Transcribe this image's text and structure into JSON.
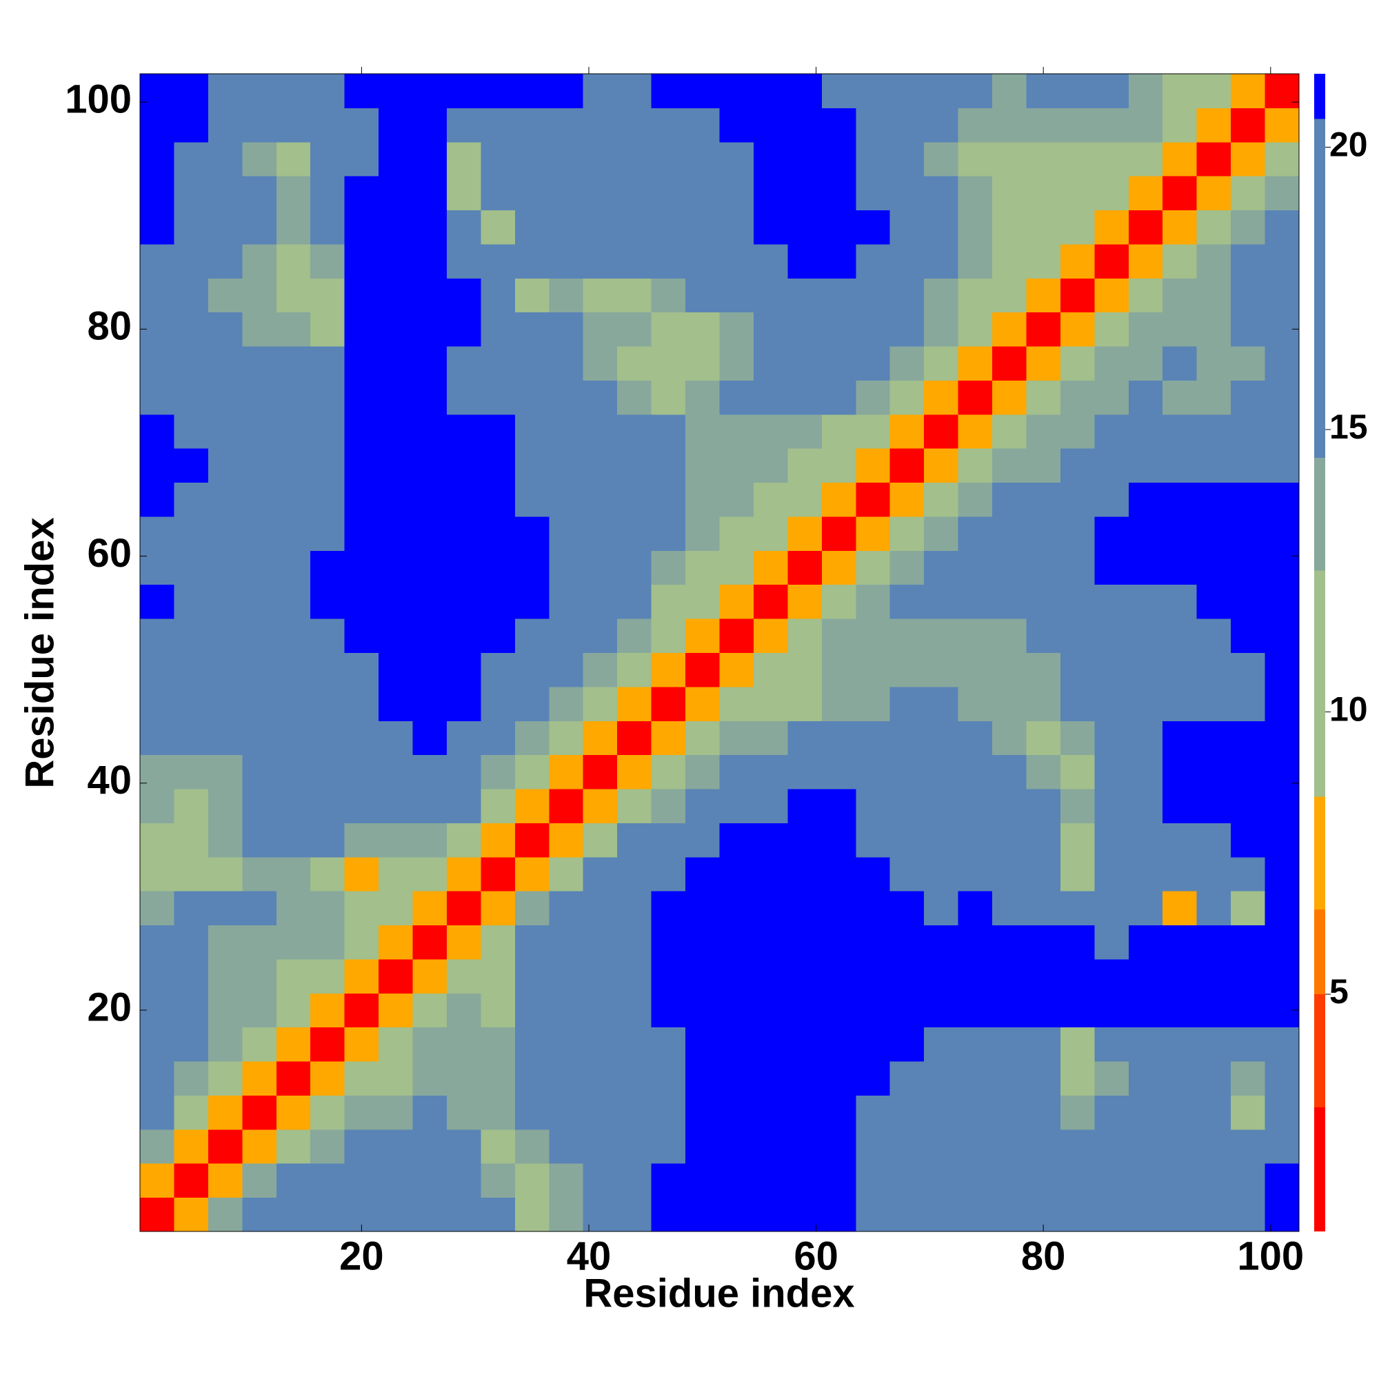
{
  "chart_data": {
    "type": "heatmap",
    "x_label": "Residue index",
    "y_label": "Residue index",
    "xlim": [
      0.5,
      102.5
    ],
    "ylim": [
      0.5,
      102.5
    ],
    "xticks": [
      20,
      40,
      60,
      80,
      100
    ],
    "yticks": [
      20,
      40,
      60,
      80,
      100
    ],
    "cell_size": 3,
    "x": [
      2,
      5,
      8,
      11,
      14,
      17,
      20,
      23,
      26,
      29,
      32,
      35,
      38,
      41,
      44,
      47,
      50,
      53,
      56,
      59,
      62,
      65,
      68,
      71,
      74,
      77,
      80,
      83,
      86,
      89,
      92,
      95,
      98,
      101
    ],
    "y": [
      2,
      5,
      8,
      11,
      14,
      17,
      20,
      23,
      26,
      29,
      32,
      35,
      38,
      41,
      44,
      47,
      50,
      53,
      56,
      59,
      62,
      65,
      68,
      71,
      74,
      77,
      80,
      83,
      86,
      89,
      92,
      95,
      98,
      101
    ],
    "z": [
      [
        2,
        7,
        13,
        15,
        16,
        17,
        17,
        17,
        16,
        17,
        15,
        10,
        14,
        16,
        18,
        21,
        21,
        21,
        21,
        21,
        21,
        19,
        19,
        18,
        19,
        19,
        18,
        19,
        19,
        18,
        18,
        19,
        19,
        21
      ],
      [
        7,
        2,
        7,
        13,
        15,
        16,
        16,
        17,
        17,
        16,
        13,
        10,
        13,
        16,
        18,
        21,
        21,
        21,
        21,
        21,
        21,
        19,
        19,
        18,
        18,
        18,
        18,
        18,
        18,
        18,
        17,
        18,
        19,
        21
      ],
      [
        13,
        7,
        2,
        7,
        12,
        14,
        15,
        15,
        16,
        15,
        10,
        14,
        15,
        17,
        17,
        19,
        21,
        21,
        21,
        21,
        21,
        19,
        18,
        18,
        17,
        17,
        16,
        17,
        17,
        17,
        16,
        16,
        17,
        19
      ],
      [
        15,
        12,
        7,
        2,
        7,
        12,
        14,
        14,
        15,
        14,
        14,
        15,
        16,
        17,
        18,
        19,
        21,
        21,
        21,
        21,
        21,
        19,
        18,
        17,
        17,
        16,
        15,
        14,
        15,
        16,
        15,
        15,
        12,
        18
      ],
      [
        16,
        14,
        11,
        7,
        2,
        7,
        11,
        12,
        14,
        14,
        14,
        15,
        16,
        17,
        18,
        19,
        21,
        21,
        21,
        21,
        21,
        21,
        19,
        18,
        17,
        16,
        15,
        11,
        14,
        16,
        16,
        15,
        14,
        18
      ],
      [
        17,
        15,
        13,
        11,
        7,
        2,
        7,
        10,
        13,
        14,
        13,
        15,
        16,
        17,
        18,
        19,
        21,
        21,
        21,
        21,
        21,
        21,
        21,
        19,
        18,
        17,
        16,
        10,
        15,
        17,
        17,
        17,
        18,
        19
      ],
      [
        17,
        15,
        14,
        13,
        10,
        7,
        2,
        7,
        11,
        13,
        10,
        15,
        16,
        17,
        18,
        21,
        21,
        21,
        21,
        21,
        21,
        21,
        21,
        21,
        21,
        21,
        21,
        21,
        21,
        21,
        21,
        21,
        21,
        21
      ],
      [
        16,
        15,
        14,
        14,
        12,
        10,
        7,
        2,
        7,
        11,
        9,
        16,
        17,
        18,
        19,
        21,
        21,
        21,
        21,
        21,
        21,
        21,
        21,
        21,
        21,
        21,
        21,
        21,
        21,
        21,
        21,
        21,
        21,
        21
      ],
      [
        16,
        15,
        14,
        14,
        13,
        13,
        11,
        7,
        2,
        7,
        12,
        16,
        17,
        18,
        19,
        21,
        21,
        21,
        21,
        21,
        21,
        21,
        21,
        21,
        21,
        21,
        21,
        21,
        19,
        21,
        21,
        21,
        21,
        21
      ],
      [
        14,
        15,
        15,
        15,
        14,
        13,
        12,
        10,
        7,
        2,
        7,
        13,
        16,
        17,
        19,
        21,
        21,
        21,
        21,
        21,
        21,
        21,
        21,
        19,
        21,
        19,
        18,
        19,
        19,
        18,
        8,
        17,
        10,
        21
      ],
      [
        12,
        10,
        12,
        14,
        13,
        12,
        8,
        9,
        11,
        7,
        2,
        7,
        12,
        15,
        17,
        19,
        21,
        21,
        21,
        21,
        21,
        21,
        19,
        18,
        19,
        18,
        17,
        10,
        17,
        18,
        18,
        19,
        19,
        21
      ],
      [
        10,
        9,
        13,
        15,
        15,
        15,
        14,
        14,
        14,
        12,
        7,
        2,
        7,
        12,
        15,
        17,
        19,
        21,
        21,
        21,
        21,
        19,
        18,
        17,
        18,
        17,
        16,
        12,
        17,
        18,
        18,
        19,
        21,
        21
      ],
      [
        13,
        12,
        14,
        15,
        16,
        16,
        17,
        17,
        17,
        15,
        12,
        7,
        2,
        7,
        12,
        14,
        16,
        18,
        19,
        21,
        21,
        19,
        18,
        17,
        17,
        16,
        15,
        13,
        17,
        19,
        21,
        21,
        21,
        21
      ],
      [
        14,
        13,
        14,
        15,
        16,
        17,
        17,
        18,
        18,
        17,
        14,
        11,
        7,
        2,
        7,
        12,
        14,
        16,
        17,
        18,
        19,
        17,
        17,
        16,
        16,
        15,
        14,
        9,
        16,
        18,
        21,
        21,
        21,
        21
      ],
      [
        16,
        15,
        16,
        16,
        17,
        17,
        18,
        19,
        21,
        18,
        17,
        14,
        11,
        7,
        2,
        7,
        11,
        13,
        14,
        15,
        16,
        16,
        16,
        15,
        15,
        14,
        10,
        14,
        17,
        19,
        21,
        21,
        21,
        21
      ],
      [
        17,
        17,
        17,
        17,
        18,
        18,
        19,
        21,
        21,
        21,
        18,
        16,
        14,
        11,
        7,
        2,
        7,
        10,
        10,
        12,
        13,
        14,
        15,
        15,
        14,
        14,
        13,
        15,
        17,
        18,
        19,
        19,
        19,
        21
      ],
      [
        18,
        17,
        17,
        18,
        18,
        18,
        19,
        21,
        21,
        21,
        19,
        17,
        16,
        14,
        11,
        7,
        2,
        7,
        9,
        11,
        13,
        14,
        14,
        14,
        14,
        13,
        14,
        15,
        17,
        18,
        18,
        19,
        19,
        21
      ],
      [
        19,
        18,
        18,
        18,
        18,
        19,
        21,
        21,
        21,
        21,
        21,
        19,
        17,
        16,
        13,
        10,
        7,
        2,
        7,
        11,
        13,
        14,
        14,
        13,
        13,
        14,
        15,
        16,
        17,
        18,
        18,
        19,
        21,
        21
      ],
      [
        21,
        19,
        19,
        19,
        19,
        21,
        21,
        21,
        21,
        21,
        21,
        21,
        19,
        17,
        15,
        12,
        9,
        7,
        2,
        7,
        11,
        13,
        15,
        16,
        16,
        16,
        17,
        17,
        18,
        19,
        19,
        21,
        21,
        21
      ],
      [
        19,
        18,
        18,
        19,
        19,
        21,
        21,
        21,
        21,
        21,
        21,
        21,
        19,
        17,
        15,
        13,
        11,
        10,
        7,
        2,
        7,
        11,
        14,
        15,
        16,
        16,
        17,
        18,
        21,
        21,
        21,
        21,
        21,
        21
      ],
      [
        19,
        18,
        18,
        17,
        18,
        19,
        21,
        21,
        21,
        21,
        21,
        21,
        19,
        17,
        16,
        15,
        13,
        12,
        10,
        7,
        2,
        7,
        10,
        13,
        15,
        16,
        17,
        18,
        21,
        21,
        21,
        21,
        21,
        21
      ],
      [
        21,
        19,
        18,
        17,
        17,
        19,
        21,
        21,
        21,
        21,
        21,
        19,
        18,
        17,
        16,
        15,
        14,
        13,
        12,
        9,
        7,
        2,
        7,
        11,
        14,
        15,
        16,
        17,
        19,
        21,
        21,
        21,
        21,
        21
      ],
      [
        21,
        21,
        19,
        18,
        17,
        18,
        21,
        21,
        21,
        21,
        21,
        19,
        17,
        16,
        16,
        15,
        14,
        13,
        13,
        12,
        9,
        7,
        2,
        7,
        11,
        13,
        14,
        15,
        16,
        17,
        18,
        19,
        18,
        19
      ],
      [
        21,
        19,
        18,
        17,
        16,
        17,
        21,
        21,
        21,
        21,
        21,
        19,
        17,
        16,
        15,
        15,
        14,
        13,
        14,
        14,
        12,
        10,
        7,
        2,
        7,
        11,
        13,
        14,
        15,
        16,
        15,
        15,
        17,
        18
      ],
      [
        19,
        18,
        17,
        16,
        16,
        17,
        21,
        21,
        21,
        19,
        18,
        17,
        16,
        15,
        13,
        12,
        14,
        15,
        16,
        17,
        16,
        14,
        11,
        7,
        2,
        7,
        11,
        13,
        14,
        15,
        14,
        14,
        15,
        17
      ],
      [
        18,
        17,
        16,
        15,
        15,
        16,
        21,
        21,
        21,
        18,
        17,
        16,
        15,
        14,
        12,
        10,
        12,
        14,
        16,
        17,
        17,
        16,
        13,
        10,
        7,
        2,
        7,
        11,
        13,
        14,
        15,
        14,
        13,
        16
      ],
      [
        18,
        17,
        15,
        14,
        13,
        12,
        21,
        21,
        21,
        21,
        18,
        16,
        15,
        14,
        13,
        11,
        12,
        14,
        16,
        17,
        18,
        17,
        15,
        13,
        10,
        7,
        2,
        7,
        11,
        13,
        14,
        14,
        15,
        16
      ],
      [
        19,
        17,
        14,
        13,
        10,
        9,
        21,
        21,
        21,
        21,
        16,
        10,
        14,
        11,
        12,
        13,
        15,
        16,
        17,
        18,
        19,
        17,
        16,
        14,
        12,
        10,
        7,
        2,
        7,
        11,
        13,
        14,
        15,
        16
      ],
      [
        19,
        17,
        15,
        13,
        12,
        13,
        21,
        21,
        21,
        19,
        16,
        15,
        15,
        15,
        16,
        17,
        18,
        18,
        19,
        21,
        21,
        19,
        18,
        16,
        14,
        12,
        10,
        7,
        2,
        7,
        11,
        13,
        15,
        16
      ],
      [
        21,
        18,
        16,
        15,
        14,
        16,
        21,
        21,
        21,
        18,
        12,
        17,
        17,
        16,
        17,
        18,
        19,
        19,
        21,
        21,
        21,
        21,
        18,
        16,
        14,
        12,
        11,
        10,
        7,
        2,
        7,
        11,
        14,
        16
      ],
      [
        21,
        18,
        16,
        15,
        14,
        16,
        21,
        21,
        21,
        12,
        17,
        17,
        16,
        15,
        16,
        17,
        18,
        19,
        21,
        21,
        21,
        19,
        17,
        15,
        13,
        12,
        11,
        11,
        10,
        7,
        2,
        7,
        11,
        14
      ],
      [
        21,
        19,
        16,
        13,
        10,
        16,
        18,
        21,
        21,
        10,
        16,
        17,
        16,
        15,
        16,
        17,
        18,
        19,
        21,
        21,
        21,
        19,
        17,
        14,
        12,
        11,
        11,
        12,
        12,
        10,
        7,
        2,
        7,
        11
      ],
      [
        21,
        21,
        17,
        15,
        16,
        17,
        18,
        21,
        21,
        17,
        18,
        19,
        18,
        17,
        17,
        18,
        19,
        21,
        21,
        21,
        21,
        19,
        18,
        16,
        14,
        13,
        13,
        14,
        14,
        13,
        10,
        7,
        2,
        7
      ],
      [
        21,
        21,
        19,
        17,
        18,
        19,
        21,
        21,
        21,
        21,
        21,
        21,
        21,
        19,
        19,
        21,
        21,
        21,
        21,
        21,
        19,
        17,
        16,
        16,
        15,
        14,
        15,
        15,
        15,
        14,
        12,
        10,
        7,
        2
      ]
    ],
    "clim": [
      0.8,
      21.3
    ],
    "cticks": [
      5,
      10,
      15,
      20
    ],
    "colorscale": [
      {
        "value": 3,
        "color": "#ff0000"
      },
      {
        "value": 5,
        "color": "#ff3c00"
      },
      {
        "value": 6.5,
        "color": "#ff7800"
      },
      {
        "value": 8.5,
        "color": "#ffa800"
      },
      {
        "value": 12.5,
        "color": "#a2bf8c"
      },
      {
        "value": 14.5,
        "color": "#88a89c"
      },
      {
        "value": 20.5,
        "color": "#5a84b6"
      },
      {
        "value": 21.3,
        "color": "#0000ff"
      }
    ]
  }
}
